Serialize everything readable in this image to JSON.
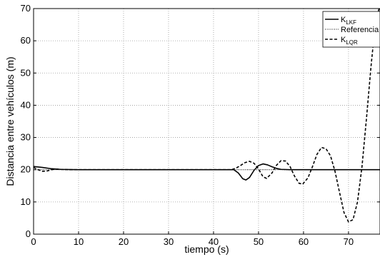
{
  "chart_data": {
    "type": "line",
    "xlabel": "tiempo (s)",
    "ylabel": "Distancia entre vehículos (m)",
    "xlim": [
      0,
      77
    ],
    "ylim": [
      0,
      70
    ],
    "x_ticks": [
      0,
      10,
      20,
      30,
      40,
      50,
      60,
      70
    ],
    "y_ticks": [
      0,
      10,
      20,
      30,
      40,
      50,
      60,
      70
    ],
    "grid": true,
    "legend_position": "top-right",
    "series": [
      {
        "name": "K_LKF",
        "legend_main": "K",
        "legend_sub": "LKF",
        "style": "solid",
        "color": "#000000",
        "points": [
          [
            0,
            21.0
          ],
          [
            2,
            20.7
          ],
          [
            4,
            20.3
          ],
          [
            6,
            20.1
          ],
          [
            10,
            20.0
          ],
          [
            20,
            20.0
          ],
          [
            30,
            20.0
          ],
          [
            40,
            20.0
          ],
          [
            44.5,
            20.0
          ],
          [
            45.5,
            19.0
          ],
          [
            46.5,
            17.2
          ],
          [
            47.2,
            16.8
          ],
          [
            48,
            17.6
          ],
          [
            49,
            19.8
          ],
          [
            50,
            21.3
          ],
          [
            51,
            21.8
          ],
          [
            52,
            21.5
          ],
          [
            53,
            20.9
          ],
          [
            54,
            20.4
          ],
          [
            55,
            20.1
          ],
          [
            57,
            20.0
          ],
          [
            77,
            20.0
          ]
        ]
      },
      {
        "name": "Referencia",
        "legend_main": "Referencia",
        "legend_sub": "",
        "style": "dotted",
        "color": "#000000",
        "points": [
          [
            0,
            20.0
          ],
          [
            77,
            20.0
          ]
        ]
      },
      {
        "name": "K_LQR",
        "legend_main": "K",
        "legend_sub": "LQR",
        "style": "dashed",
        "color": "#000000",
        "points": [
          [
            0,
            20.7
          ],
          [
            1,
            20.0
          ],
          [
            2,
            19.5
          ],
          [
            3,
            19.6
          ],
          [
            4,
            20.0
          ],
          [
            5,
            20.2
          ],
          [
            6,
            20.1
          ],
          [
            8,
            20.0
          ],
          [
            44,
            20.0
          ],
          [
            45,
            20.5
          ],
          [
            46,
            21.3
          ],
          [
            47,
            22.2
          ],
          [
            48,
            22.6
          ],
          [
            49,
            22.0
          ],
          [
            50,
            20.2
          ],
          [
            51,
            17.8
          ],
          [
            51.8,
            17.3
          ],
          [
            53,
            19.0
          ],
          [
            54,
            21.4
          ],
          [
            55,
            22.8
          ],
          [
            56,
            22.7
          ],
          [
            57,
            21.0
          ],
          [
            58,
            18.0
          ],
          [
            59,
            15.8
          ],
          [
            59.8,
            15.5
          ],
          [
            61,
            17.5
          ],
          [
            62,
            21.0
          ],
          [
            63,
            24.8
          ],
          [
            64,
            26.9
          ],
          [
            65,
            26.5
          ],
          [
            66,
            24.3
          ],
          [
            67,
            19.5
          ],
          [
            68,
            13.0
          ],
          [
            69,
            6.7
          ],
          [
            70,
            3.8
          ],
          [
            71,
            4.5
          ],
          [
            72,
            10.0
          ],
          [
            73,
            21.0
          ],
          [
            74,
            36.0
          ],
          [
            75,
            52.0
          ],
          [
            76,
            66.0
          ],
          [
            76.8,
            70.0
          ]
        ]
      }
    ]
  }
}
